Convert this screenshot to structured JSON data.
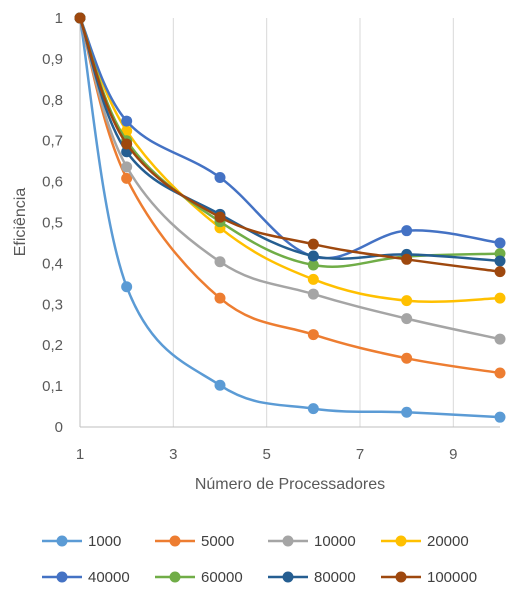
{
  "chart_data": {
    "type": "line",
    "xlabel": "Número de Processadores",
    "ylabel": "Eficiência",
    "xlim": [
      1,
      10
    ],
    "ylim": [
      0,
      1
    ],
    "x_ticks": [
      "1",
      "3",
      "5",
      "7",
      "9"
    ],
    "x_tick_values": [
      1,
      3,
      5,
      7,
      9
    ],
    "y_ticks": [
      "0",
      "0,1",
      "0,2",
      "0,3",
      "0,4",
      "0,5",
      "0,6",
      "0,7",
      "0,8",
      "0,9",
      "1"
    ],
    "y_tick_values": [
      0,
      0.1,
      0.2,
      0.3,
      0.4,
      0.5,
      0.6,
      0.7,
      0.8,
      0.9,
      1
    ],
    "grid": "vertical",
    "legend_position": "bottom",
    "x": [
      1,
      2,
      4,
      6,
      8,
      10
    ],
    "series": [
      {
        "name": "1000",
        "color": "#5B9BD5",
        "values": [
          1,
          0.343,
          0.102,
          0.045,
          0.036,
          0.024
        ]
      },
      {
        "name": "5000",
        "color": "#ED7D31",
        "values": [
          1,
          0.608,
          0.315,
          0.226,
          0.168,
          0.132
        ]
      },
      {
        "name": "10000",
        "color": "#A5A5A5",
        "values": [
          1,
          0.636,
          0.404,
          0.325,
          0.265,
          0.215
        ]
      },
      {
        "name": "20000",
        "color": "#FFC000",
        "values": [
          1,
          0.724,
          0.487,
          0.361,
          0.309,
          0.315
        ]
      },
      {
        "name": "40000",
        "color": "#4472C4",
        "values": [
          1,
          0.748,
          0.61,
          0.417,
          0.48,
          0.45
        ]
      },
      {
        "name": "60000",
        "color": "#70AD47",
        "values": [
          1,
          0.7,
          0.502,
          0.396,
          0.417,
          0.424
        ]
      },
      {
        "name": "80000",
        "color": "#255E91",
        "values": [
          1,
          0.673,
          0.52,
          0.418,
          0.422,
          0.406
        ]
      },
      {
        "name": "100000",
        "color": "#9E480E",
        "values": [
          1,
          0.692,
          0.513,
          0.447,
          0.41,
          0.38
        ]
      }
    ]
  }
}
